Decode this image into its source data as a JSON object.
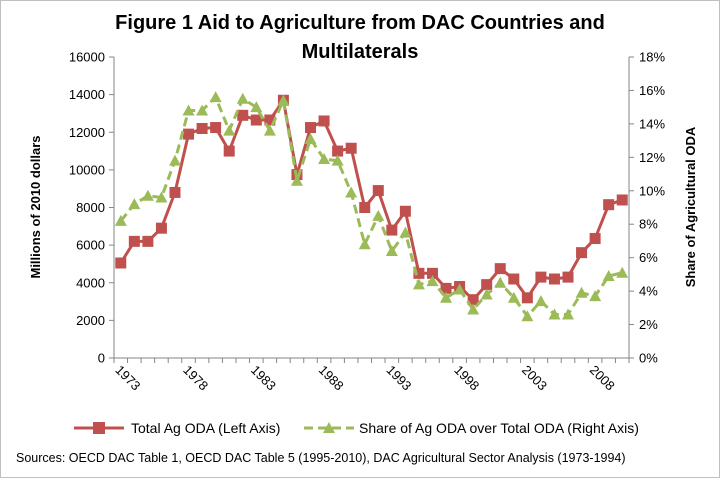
{
  "chart_data": {
    "type": "line",
    "title_line1": "Figure 1 Aid to Agriculture from DAC Countries and",
    "title_line2": "Multilaterals",
    "ylabel_left": "Millions of 2010 dollars",
    "ylabel_right": "Share of Agricultural ODA",
    "ylim_left": [
      0,
      16000
    ],
    "ylim_right": [
      0,
      18
    ],
    "left_ticks": [
      "0",
      "2000",
      "4000",
      "6000",
      "8000",
      "10000",
      "12000",
      "14000",
      "16000"
    ],
    "right_ticks": [
      "0%",
      "2%",
      "4%",
      "6%",
      "8%",
      "10%",
      "12%",
      "14%",
      "16%",
      "18%"
    ],
    "x_ticks": [
      "1973",
      "1978",
      "1983",
      "1988",
      "1993",
      "1998",
      "2003",
      "2008"
    ],
    "x_start": 1973,
    "x_end": 2010,
    "series": [
      {
        "name": "Total Ag ODA (Left Axis)",
        "color": "#c0504d",
        "axis": "left",
        "x": [
          1973,
          1974,
          1975,
          1976,
          1977,
          1978,
          1979,
          1980,
          1981,
          1982,
          1983,
          1984,
          1985,
          1986,
          1987,
          1988,
          1989,
          1990,
          1991,
          1992,
          1993,
          1994,
          1995,
          1996,
          1997,
          1998,
          1999,
          2000,
          2001,
          2002,
          2003,
          2004,
          2005,
          2006,
          2007,
          2008,
          2009,
          2010
        ],
        "values": [
          5050,
          6200,
          6200,
          6900,
          8800,
          11900,
          12200,
          12250,
          11000,
          12900,
          12650,
          12650,
          13700,
          9750,
          12250,
          12600,
          11000,
          11150,
          8000,
          8900,
          6800,
          7800,
          4500,
          4500,
          3700,
          3800,
          3100,
          3900,
          4750,
          4200,
          3200,
          4300,
          4200,
          4300,
          5600,
          6350,
          8150,
          8400
        ]
      },
      {
        "name": "Share of Ag ODA over Total ODA (Right Axis)",
        "color": "#9bbb59",
        "axis": "right",
        "x": [
          1973,
          1974,
          1975,
          1976,
          1977,
          1978,
          1979,
          1980,
          1981,
          1982,
          1983,
          1984,
          1985,
          1986,
          1987,
          1988,
          1989,
          1990,
          1991,
          1992,
          1993,
          1994,
          1995,
          1996,
          1997,
          1998,
          1999,
          2000,
          2001,
          2002,
          2003,
          2004,
          2005,
          2006,
          2007,
          2008,
          2009,
          2010
        ],
        "values": [
          8.2,
          9.2,
          9.7,
          9.6,
          11.8,
          14.8,
          14.8,
          15.6,
          13.6,
          15.5,
          15.0,
          13.6,
          15.4,
          10.6,
          13.1,
          11.9,
          11.8,
          9.9,
          6.8,
          8.5,
          6.4,
          7.5,
          4.4,
          4.6,
          3.6,
          4.1,
          2.9,
          3.8,
          4.5,
          3.6,
          2.5,
          3.4,
          2.6,
          2.6,
          3.9,
          3.7,
          4.9,
          5.1
        ]
      }
    ]
  },
  "source_text": "Sources: OECD DAC Table 1, OECD DAC Table 5 (1995-2010), DAC Agricultural Sector Analysis (1973-1994)"
}
